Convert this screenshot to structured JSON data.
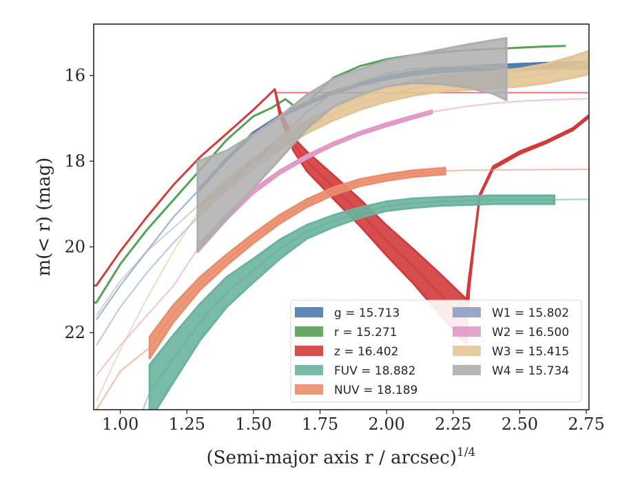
{
  "chart_data": {
    "type": "line",
    "xlabel": "(Semi-major axis r / arcsec)",
    "xlabel_superscript": "1/4",
    "ylabel": "m(< r) (mag)",
    "xlim": [
      0.9,
      2.76
    ],
    "ylim": [
      23.8,
      14.8
    ],
    "y_inverted": true,
    "x_ticks": [
      "1.00",
      "1.25",
      "1.50",
      "1.75",
      "2.00",
      "2.25",
      "2.50",
      "2.75"
    ],
    "y_ticks": [
      "16",
      "18",
      "20",
      "22"
    ],
    "legend_location": "lower-right",
    "grid": false,
    "series": [
      {
        "name": "g = 15.713",
        "key": "g",
        "color": "#4c7bab",
        "x": [
          0.91,
          1.0,
          1.1,
          1.2,
          1.29,
          1.4,
          1.5,
          1.6,
          1.7,
          1.8,
          1.9,
          2.0,
          2.1,
          2.2,
          2.3,
          2.4,
          2.5,
          2.6,
          2.7,
          2.76
        ],
        "y": [
          21.7,
          20.9,
          20.1,
          19.3,
          18.7,
          17.95,
          17.35,
          16.95,
          16.65,
          16.4,
          16.2,
          16.05,
          15.95,
          15.88,
          15.84,
          15.81,
          15.79,
          15.77,
          15.76,
          15.76
        ],
        "band_width": [
          0,
          0,
          0,
          0,
          0.05,
          0.05,
          0.05,
          0.05,
          0.06,
          0.06,
          0.06,
          0.07,
          0.08,
          0.09,
          0.1,
          0.11,
          0.12,
          0.13,
          0.14,
          0.15
        ],
        "x_opaque_start": 1.29,
        "x_opaque_end": 2.76
      },
      {
        "name": "r = 15.271",
        "key": "r",
        "color": "#55a155",
        "x": [
          0.91,
          1.0,
          1.1,
          1.2,
          1.3,
          1.4,
          1.5,
          1.57,
          1.62,
          1.66,
          1.7,
          1.75,
          1.8,
          1.9,
          2.0,
          2.1,
          2.2,
          2.3,
          2.4,
          2.5,
          2.6,
          2.67
        ],
        "y": [
          21.3,
          20.4,
          19.6,
          18.9,
          18.2,
          17.5,
          16.95,
          16.75,
          16.55,
          16.75,
          16.65,
          16.35,
          16.05,
          15.78,
          15.62,
          15.52,
          15.46,
          15.41,
          15.38,
          15.35,
          15.32,
          15.31
        ],
        "band_width": [
          0,
          0,
          0,
          0,
          0,
          0,
          0,
          0,
          0,
          0,
          0,
          0,
          0,
          0,
          0,
          0,
          0,
          0,
          0,
          0,
          0,
          0
        ],
        "x_opaque_start": 0.9,
        "x_opaque_end": 2.67
      },
      {
        "name": "z = 16.402",
        "key": "z",
        "color": "#d13b3b",
        "x": [
          0.91,
          1.0,
          1.1,
          1.2,
          1.3,
          1.4,
          1.5,
          1.55,
          1.58,
          1.6,
          1.65,
          1.7,
          1.8,
          1.9,
          2.0,
          2.1,
          2.2,
          2.3,
          2.31,
          2.33,
          2.35,
          2.4,
          2.5,
          2.6,
          2.7,
          2.76
        ],
        "y": [
          20.9,
          20.1,
          19.3,
          18.55,
          17.9,
          17.35,
          16.8,
          16.5,
          16.32,
          16.9,
          17.6,
          18.0,
          18.6,
          19.2,
          19.85,
          20.45,
          21.1,
          21.75,
          20.85,
          19.8,
          18.8,
          18.15,
          17.8,
          17.55,
          17.25,
          16.95
        ],
        "band_width": [
          0,
          0,
          0,
          0,
          0,
          0,
          0,
          0,
          0,
          0.15,
          0.3,
          0.45,
          0.55,
          0.62,
          0.7,
          0.8,
          0.95,
          1.05,
          0.3,
          0.08,
          0.06,
          0.06,
          0.06,
          0.05,
          0.05,
          0.05
        ],
        "x_opaque_start": 0.9,
        "x_opaque_end": 2.76,
        "plateau": 16.402
      },
      {
        "name": "FUV = 18.882",
        "key": "FUV",
        "color": "#6bb39e",
        "x": [
          1.06,
          1.11,
          1.2,
          1.3,
          1.4,
          1.5,
          1.6,
          1.7,
          1.8,
          1.9,
          2.0,
          2.1,
          2.2,
          2.3,
          2.4,
          2.5,
          2.63,
          2.7,
          2.76
        ],
        "y": [
          24.2,
          23.4,
          22.6,
          21.75,
          21.05,
          20.55,
          20.05,
          19.65,
          19.4,
          19.2,
          19.05,
          18.98,
          18.94,
          18.92,
          18.9,
          18.9,
          18.9,
          18.89,
          18.89
        ],
        "band_width": [
          0,
          1.3,
          1.1,
          0.85,
          0.7,
          0.55,
          0.45,
          0.32,
          0.28,
          0.24,
          0.22,
          0.22,
          0.2,
          0.2,
          0.2,
          0.2,
          0.2,
          0,
          0
        ],
        "x_opaque_start": 1.11,
        "x_opaque_end": 2.63
      },
      {
        "name": "NUV = 18.189",
        "key": "NUV",
        "color": "#ea8d6d",
        "x": [
          0.91,
          1.0,
          1.11,
          1.2,
          1.3,
          1.4,
          1.5,
          1.6,
          1.7,
          1.8,
          1.9,
          2.0,
          2.1,
          2.22,
          2.3,
          2.5,
          2.76
        ],
        "y": [
          23.8,
          22.9,
          22.35,
          21.55,
          20.85,
          20.3,
          19.8,
          19.35,
          18.98,
          18.7,
          18.5,
          18.38,
          18.29,
          18.23,
          18.21,
          18.2,
          18.19
        ],
        "band_width": [
          0,
          0,
          0.5,
          0.4,
          0.3,
          0.25,
          0.22,
          0.2,
          0.18,
          0.17,
          0.16,
          0.15,
          0.15,
          0.15,
          0,
          0,
          0
        ],
        "x_opaque_start": 1.11,
        "x_opaque_end": 2.22
      },
      {
        "name": "W1 = 15.802",
        "key": "W1",
        "color": "#8c9ec5",
        "x": [
          0.91,
          1.0,
          1.1,
          1.2,
          1.3,
          1.4,
          1.5,
          1.6,
          1.7,
          1.8,
          1.9,
          2.0,
          2.1,
          2.2,
          2.3,
          2.4,
          2.5,
          2.6,
          2.7,
          2.76
        ],
        "y": [
          22.3,
          21.4,
          20.6,
          19.9,
          19.25,
          18.6,
          18.0,
          17.5,
          17.1,
          16.75,
          16.5,
          16.3,
          16.15,
          16.05,
          15.98,
          15.93,
          15.9,
          15.86,
          15.84,
          15.82
        ],
        "band_width": [
          0,
          0,
          0,
          0,
          0,
          0,
          0,
          0,
          0,
          0,
          0,
          0,
          0,
          0,
          0,
          0,
          0,
          0,
          0,
          0
        ],
        "x_opaque_start": 2.76,
        "x_opaque_end": 2.76
      },
      {
        "name": "W2 = 16.500",
        "key": "W2",
        "color": "#e19ac6",
        "x": [
          0.91,
          1.0,
          1.1,
          1.2,
          1.29,
          1.4,
          1.5,
          1.6,
          1.7,
          1.8,
          1.9,
          2.0,
          2.1,
          2.17,
          2.3,
          2.4,
          2.5,
          2.6,
          2.7,
          2.76
        ],
        "y": [
          23.0,
          22.3,
          21.6,
          20.9,
          20.05,
          19.3,
          18.7,
          18.25,
          17.9,
          17.6,
          17.35,
          17.15,
          16.97,
          16.85,
          16.72,
          16.65,
          16.6,
          16.57,
          16.55,
          16.54
        ],
        "band_width": [
          0,
          0,
          0,
          0,
          0.15,
          0.12,
          0.1,
          0.08,
          0.08,
          0.07,
          0.07,
          0.07,
          0.07,
          0.07,
          0,
          0,
          0,
          0,
          0,
          0
        ],
        "x_opaque_start": 1.29,
        "x_opaque_end": 2.17
      },
      {
        "name": "W3 = 15.415",
        "key": "W3",
        "color": "#e3c496",
        "x": [
          0.91,
          1.0,
          1.1,
          1.2,
          1.29,
          1.4,
          1.5,
          1.6,
          1.7,
          1.8,
          1.9,
          2.0,
          2.1,
          2.2,
          2.3,
          2.4,
          2.5,
          2.6,
          2.7,
          2.76
        ],
        "y": [
          23.6,
          22.4,
          21.2,
          20.1,
          19.2,
          18.55,
          18.05,
          17.6,
          17.2,
          16.9,
          16.65,
          16.45,
          16.3,
          16.2,
          16.15,
          16.1,
          16.05,
          15.95,
          15.8,
          15.7
        ],
        "band_width": [
          0,
          0,
          0,
          0,
          0.25,
          0.25,
          0.25,
          0.25,
          0.3,
          0.3,
          0.3,
          0.32,
          0.34,
          0.36,
          0.38,
          0.4,
          0.42,
          0.45,
          0.5,
          0.55
        ],
        "x_opaque_start": 1.29,
        "x_opaque_end": 2.76
      },
      {
        "name": "W4 = 15.734",
        "key": "W4",
        "color": "#aeaeae",
        "x": [
          0.91,
          1.0,
          1.1,
          1.2,
          1.29,
          1.4,
          1.5,
          1.6,
          1.7,
          1.8,
          1.9,
          2.0,
          2.1,
          2.2,
          2.3,
          2.4,
          2.45
        ],
        "y": [
          21.6,
          20.8,
          20.1,
          19.55,
          19.05,
          18.55,
          18.0,
          17.45,
          16.85,
          16.4,
          16.15,
          15.95,
          15.85,
          15.8,
          15.78,
          15.8,
          15.85
        ],
        "band_width": [
          0,
          0,
          0,
          0,
          2.1,
          1.6,
          1.25,
          1.0,
          0.8,
          0.65,
          0.6,
          0.6,
          0.65,
          0.8,
          1.0,
          1.25,
          1.45
        ],
        "x_opaque_start": 1.29,
        "x_opaque_end": 2.45
      }
    ]
  }
}
